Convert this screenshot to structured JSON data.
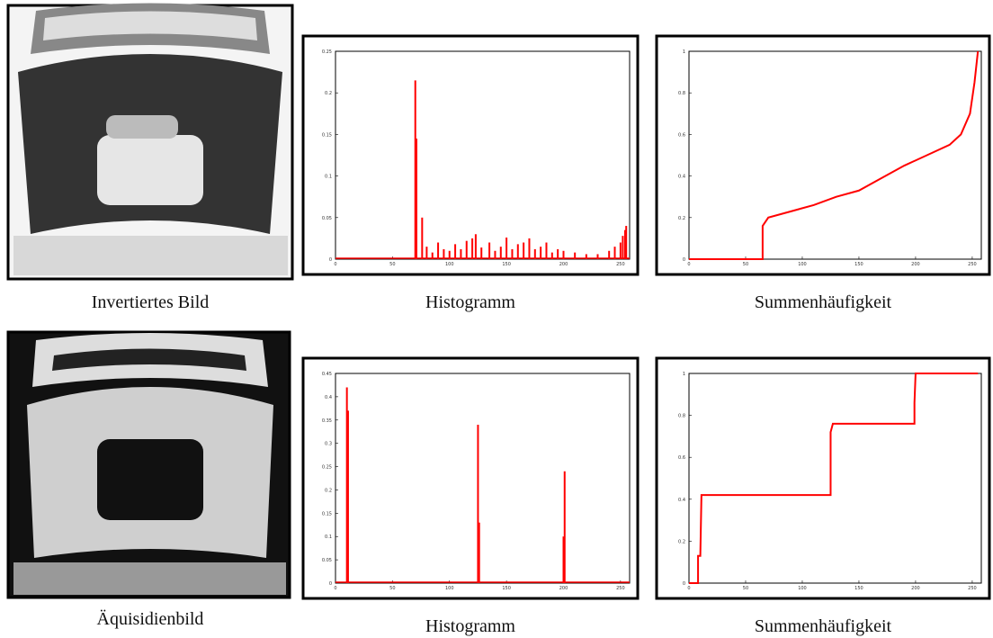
{
  "images": [
    {
      "caption": "Invertiertes Bild"
    },
    {
      "caption": "Äquisidienbild"
    }
  ],
  "chart_data": [
    {
      "type": "bar",
      "caption": "Histogramm",
      "color": "#ff0000",
      "x": [
        70,
        71,
        76,
        80,
        85,
        90,
        95,
        100,
        105,
        110,
        115,
        120,
        123,
        128,
        135,
        140,
        145,
        150,
        155,
        160,
        165,
        170,
        175,
        180,
        185,
        190,
        195,
        200,
        210,
        220,
        230,
        240,
        245,
        250,
        252,
        254,
        255
      ],
      "values": [
        0.215,
        0.145,
        0.05,
        0.015,
        0.008,
        0.02,
        0.012,
        0.01,
        0.018,
        0.012,
        0.022,
        0.025,
        0.03,
        0.014,
        0.02,
        0.01,
        0.015,
        0.026,
        0.012,
        0.018,
        0.02,
        0.025,
        0.012,
        0.015,
        0.02,
        0.008,
        0.012,
        0.01,
        0.008,
        0.006,
        0.006,
        0.01,
        0.015,
        0.02,
        0.028,
        0.035,
        0.04
      ],
      "xlim": [
        0,
        258
      ],
      "xticks": [
        0,
        50,
        100,
        150,
        200,
        250
      ],
      "ylim": [
        0,
        0.25
      ],
      "yticks": [
        0,
        0.05,
        0.1,
        0.15,
        0.2,
        0.25
      ]
    },
    {
      "type": "line",
      "caption": "Summenhäufigkeit",
      "color": "#ff0000",
      "x": [
        0,
        65,
        65,
        70,
        90,
        110,
        130,
        150,
        170,
        190,
        210,
        230,
        240,
        248,
        252,
        255
      ],
      "values": [
        0,
        0,
        0.16,
        0.2,
        0.23,
        0.26,
        0.3,
        0.33,
        0.39,
        0.45,
        0.5,
        0.55,
        0.6,
        0.7,
        0.85,
        1
      ],
      "xlim": [
        0,
        258
      ],
      "xticks": [
        0,
        50,
        100,
        150,
        200,
        250
      ],
      "ylim": [
        0,
        1
      ],
      "yticks": [
        0,
        0.2,
        0.4,
        0.6,
        0.8,
        1
      ]
    },
    {
      "type": "bar",
      "caption": "Histogramm",
      "color": "#ff0000",
      "x": [
        10,
        11,
        125,
        126,
        200,
        201
      ],
      "values": [
        0.42,
        0.37,
        0.34,
        0.13,
        0.1,
        0.24
      ],
      "xlim": [
        0,
        258
      ],
      "xticks": [
        0,
        50,
        100,
        150,
        200,
        250
      ],
      "ylim": [
        0,
        0.45
      ],
      "yticks": [
        0,
        0.05,
        0.1,
        0.15,
        0.2,
        0.25,
        0.3,
        0.35,
        0.4,
        0.45
      ]
    },
    {
      "type": "line",
      "caption": "Summenhäufigkeit",
      "color": "#ff0000",
      "x": [
        0,
        8,
        8,
        10,
        11,
        125,
        125,
        127,
        199,
        199,
        200,
        255
      ],
      "values": [
        0,
        0,
        0.13,
        0.13,
        0.42,
        0.42,
        0.72,
        0.76,
        0.76,
        0.86,
        1,
        1
      ],
      "xlim": [
        0,
        258
      ],
      "xticks": [
        0,
        50,
        100,
        150,
        200,
        250
      ],
      "ylim": [
        0,
        1
      ],
      "yticks": [
        0,
        0.2,
        0.4,
        0.6,
        0.8,
        1
      ]
    }
  ]
}
